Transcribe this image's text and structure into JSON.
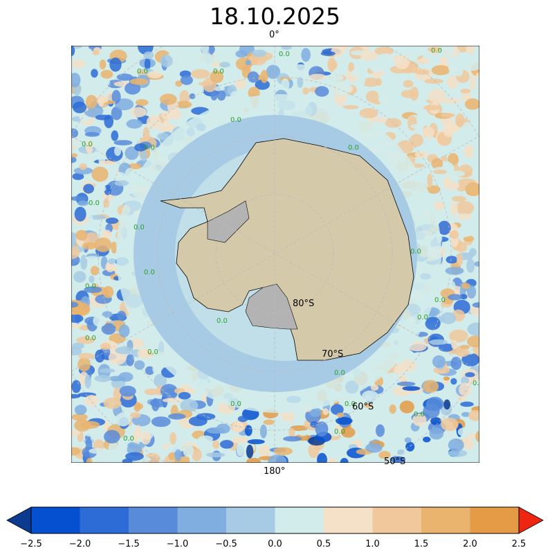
{
  "title": "18.10.2025",
  "map": {
    "meridian_labels": {
      "top": "0°",
      "bottom": "180°"
    },
    "parallel_labels": [
      "80°S",
      "70°S",
      "60°S",
      "50°S"
    ],
    "contour_label": "0.0",
    "colors": {
      "land": "#d4c9a8",
      "ice_shelf": "#b3b3b3",
      "grid": "#bbbbbb",
      "contour_label": "#2ca02c"
    }
  },
  "colorbar": {
    "ticks": [
      "−2.5",
      "−2.0",
      "−1.5",
      "−1.0",
      "−0.5",
      "0.0",
      "0.5",
      "1.0",
      "1.5",
      "2.0",
      "2.5"
    ],
    "range": [
      -2.5,
      2.5
    ],
    "under_color": "#0b3a8f",
    "over_color": "#ee2510",
    "colors": [
      "#0550d0",
      "#2d6cd6",
      "#588cda",
      "#80aee0",
      "#a7cbe4",
      "#d2ecec",
      "#f5e1c8",
      "#f0c89c",
      "#eab46e",
      "#e59b45"
    ]
  }
}
